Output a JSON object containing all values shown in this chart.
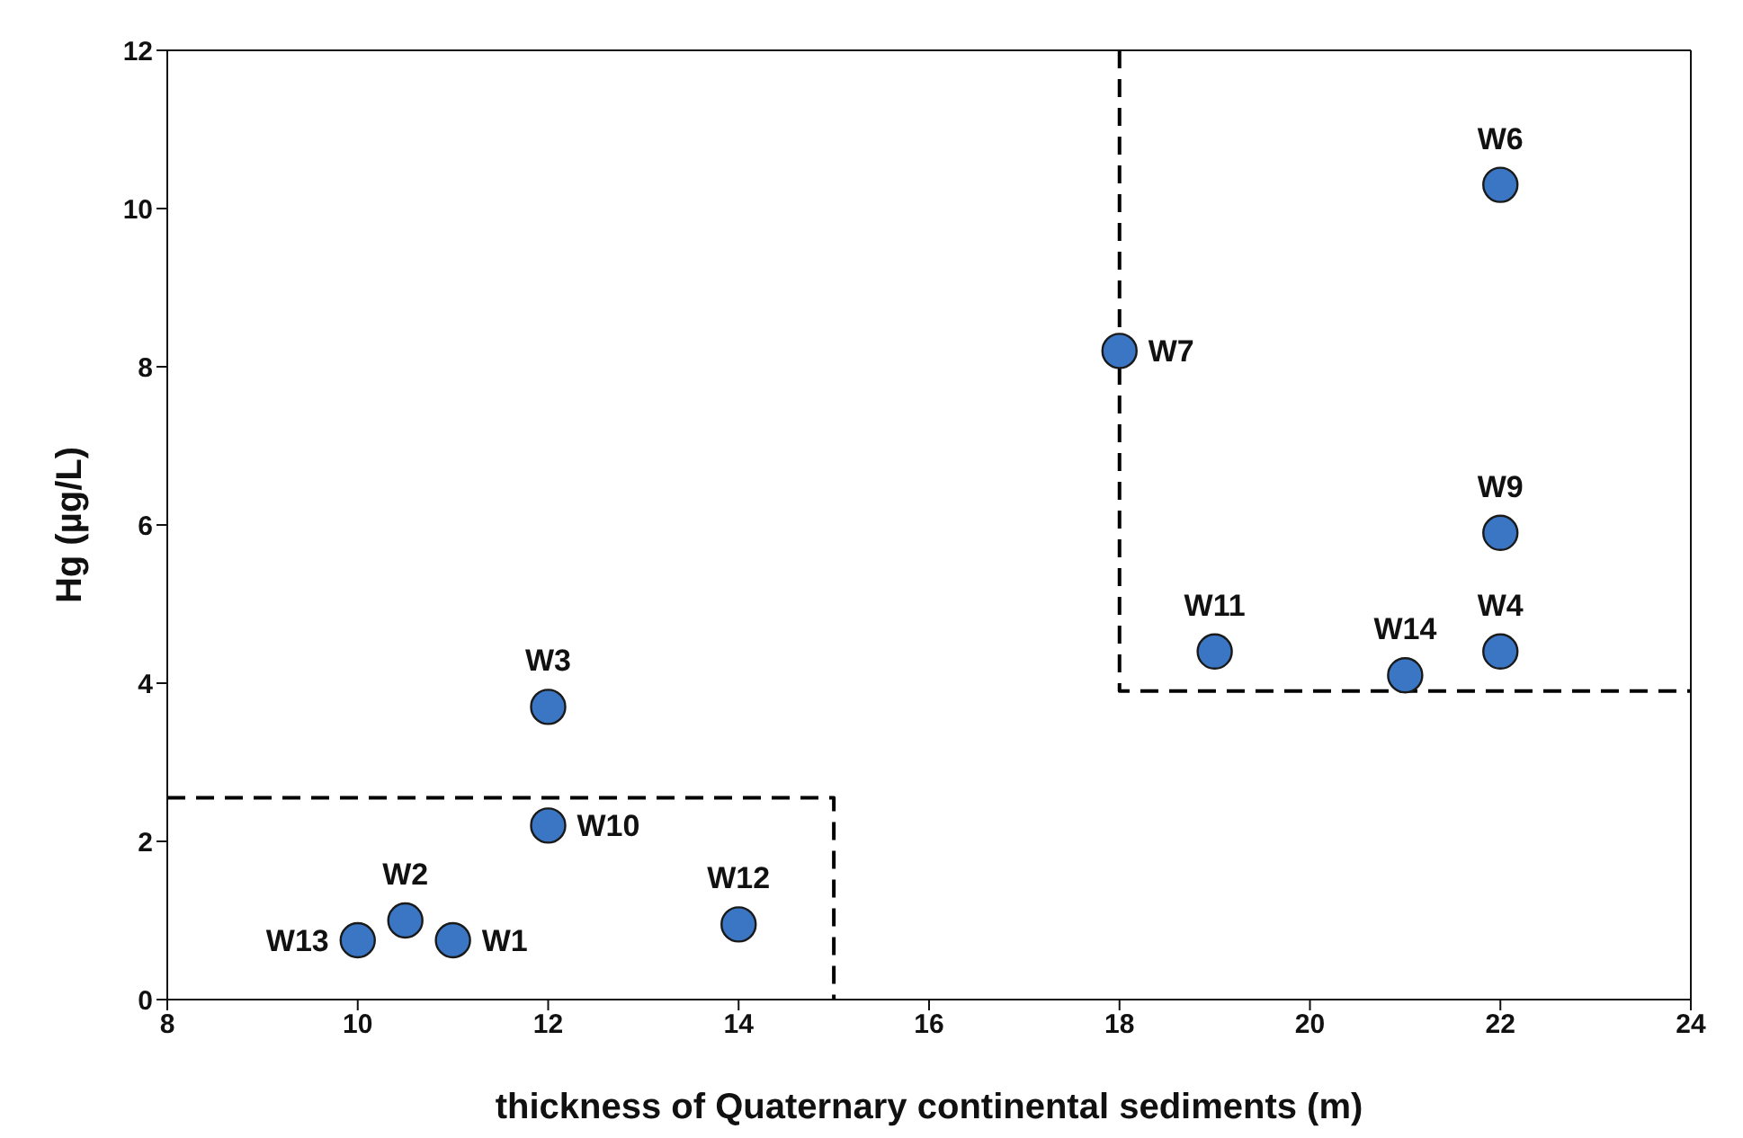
{
  "chart_data": {
    "type": "scatter",
    "xlabel": "thickness of Quaternary continental sediments (m)",
    "ylabel": "Hg (µg/L)",
    "xlim": [
      8,
      24
    ],
    "xticks": [
      8,
      10,
      12,
      14,
      16,
      18,
      20,
      22,
      24
    ],
    "ylim": [
      0,
      12
    ],
    "yticks": [
      0,
      2,
      4,
      6,
      8,
      10,
      12
    ],
    "grid": false,
    "legend": false,
    "marker": "circle",
    "series": [
      {
        "color": "#3a76c4",
        "x": [
          11,
          10.5,
          12,
          22,
          22,
          18,
          22,
          12,
          19,
          14,
          10,
          21
        ],
        "values": [
          0.75,
          1.0,
          3.7,
          4.4,
          10.3,
          8.2,
          5.9,
          2.2,
          4.4,
          0.95,
          0.75,
          4.1
        ]
      },
      {
        "type": "line",
        "color": "#000000",
        "line_style": "dashed",
        "marker": "none",
        "x": [
          8,
          15,
          15
        ],
        "values": [
          2.55,
          2.55,
          0
        ]
      },
      {
        "type": "line",
        "color": "#000000",
        "line_style": "dashed",
        "marker": "none",
        "x": [
          18,
          18,
          24
        ],
        "values": [
          12,
          3.9,
          3.9
        ]
      }
    ],
    "annotations": [
      {
        "text": "W1",
        "x": 11,
        "y": 0.75
      },
      {
        "text": "W2",
        "x": 10.5,
        "y": 1.0
      },
      {
        "text": "W3",
        "x": 12,
        "y": 3.7
      },
      {
        "text": "W4",
        "x": 22,
        "y": 4.4
      },
      {
        "text": "W6",
        "x": 22,
        "y": 10.3
      },
      {
        "text": "W7",
        "x": 18,
        "y": 8.2
      },
      {
        "text": "W9",
        "x": 22,
        "y": 5.9
      },
      {
        "text": "W10",
        "x": 12,
        "y": 2.2
      },
      {
        "text": "W11",
        "x": 19,
        "y": 4.4
      },
      {
        "text": "W12",
        "x": 14,
        "y": 0.95
      },
      {
        "text": "W13",
        "x": 10,
        "y": 0.75
      },
      {
        "text": "W14",
        "x": 21,
        "y": 4.1
      }
    ]
  }
}
